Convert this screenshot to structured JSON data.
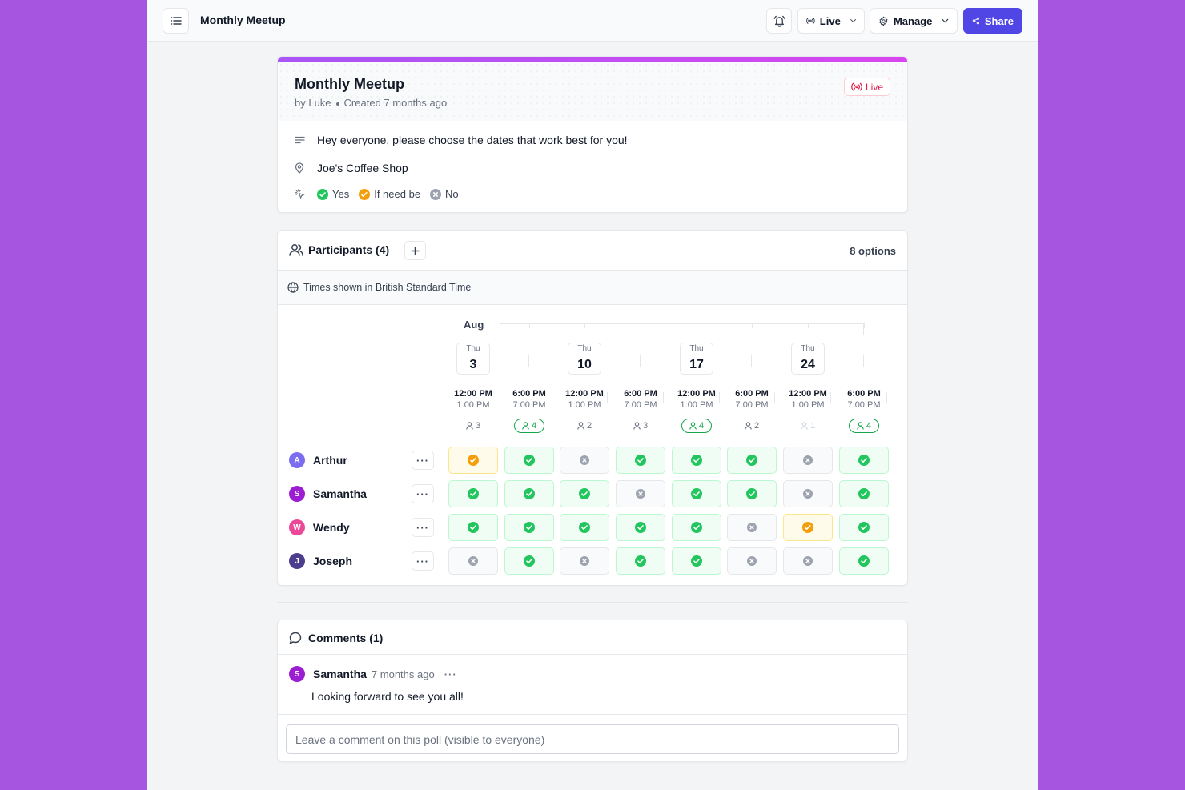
{
  "topbar": {
    "title": "Monthly Meetup",
    "live_label": "Live",
    "manage_label": "Manage",
    "share_label": "Share"
  },
  "poll": {
    "title": "Monthly Meetup",
    "author": "by Luke",
    "created": "Created 7 months ago",
    "status_badge": "Live",
    "description": "Hey everyone, please choose the dates that work best for you!",
    "location": "Joe's Coffee Shop",
    "legend": {
      "yes": "Yes",
      "maybe": "If need be",
      "no": "No"
    }
  },
  "participants": {
    "title": "Participants (4)",
    "options_count": "8 options",
    "timezone_note": "Times shown in British Standard Time",
    "month": "Aug",
    "dates": [
      {
        "dow": "Thu",
        "day": "3"
      },
      {
        "dow": "Thu",
        "day": "10"
      },
      {
        "dow": "Thu",
        "day": "17"
      },
      {
        "dow": "Thu",
        "day": "24"
      }
    ],
    "options": [
      {
        "start": "12:00 PM",
        "end": "1:00 PM",
        "count": "3"
      },
      {
        "start": "6:00 PM",
        "end": "7:00 PM",
        "count": "4"
      },
      {
        "start": "12:00 PM",
        "end": "1:00 PM",
        "count": "2"
      },
      {
        "start": "6:00 PM",
        "end": "7:00 PM",
        "count": "3"
      },
      {
        "start": "12:00 PM",
        "end": "1:00 PM",
        "count": "4"
      },
      {
        "start": "6:00 PM",
        "end": "7:00 PM",
        "count": "2"
      },
      {
        "start": "12:00 PM",
        "end": "1:00 PM",
        "count": "1"
      },
      {
        "start": "6:00 PM",
        "end": "7:00 PM",
        "count": "4"
      }
    ],
    "rows": [
      {
        "initial": "A",
        "name": "Arthur",
        "color": "#7c6cf0",
        "votes": [
          "maybe",
          "yes",
          "no",
          "yes",
          "yes",
          "yes",
          "no",
          "yes"
        ]
      },
      {
        "initial": "S",
        "name": "Samantha",
        "color": "#9b1fd1",
        "votes": [
          "yes",
          "yes",
          "yes",
          "no",
          "yes",
          "yes",
          "no",
          "yes"
        ]
      },
      {
        "initial": "W",
        "name": "Wendy",
        "color": "#ec4899",
        "votes": [
          "yes",
          "yes",
          "yes",
          "yes",
          "yes",
          "no",
          "maybe",
          "yes"
        ]
      },
      {
        "initial": "J",
        "name": "Joseph",
        "color": "#4c3d8f",
        "votes": [
          "no",
          "yes",
          "no",
          "yes",
          "yes",
          "no",
          "no",
          "yes"
        ]
      }
    ],
    "more_label": "···"
  },
  "comments": {
    "title": "Comments (1)",
    "items": [
      {
        "initial": "S",
        "author": "Samantha",
        "time": "7 months ago",
        "text": "Looking forward to see you all!"
      }
    ],
    "input_placeholder": "Leave a comment on this poll (visible to everyone)"
  },
  "colors": {
    "accent": "#4f46e5",
    "yes": "#22c55e",
    "maybe": "#f59e0b",
    "no": "#9ca3af",
    "live": "#e11d48"
  }
}
